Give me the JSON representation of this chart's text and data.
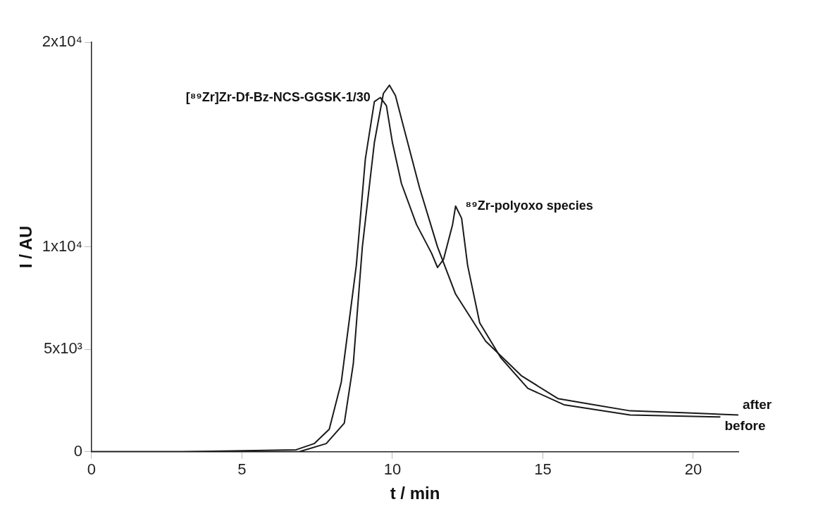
{
  "chart_data": {
    "type": "line",
    "xlabel": "t / min",
    "ylabel": "I / AU",
    "xlim": [
      0,
      21.5
    ],
    "xticks": [
      0,
      5,
      10,
      15,
      20
    ],
    "ylim": [
      0,
      20000
    ],
    "yticks": [
      0,
      {
        "value": 5000,
        "label": "5x10³"
      },
      {
        "value": 10000,
        "label": "1x10⁴"
      },
      {
        "value": 20000,
        "label": "2x10⁴"
      }
    ],
    "marker": "none",
    "line_style": "solid",
    "series": [
      {
        "name": "after",
        "color": "#1a1a1a",
        "x": [
          0,
          3,
          6.9,
          7.8,
          8.4,
          8.7,
          9.0,
          9.4,
          9.7,
          9.9,
          10.1,
          10.4,
          10.9,
          11.5,
          12.1,
          13.1,
          14.3,
          15.5,
          16.7,
          17.9,
          19.8,
          21.5
        ],
        "values": [
          0,
          0,
          0,
          400,
          1400,
          4300,
          10000,
          15100,
          17500,
          17900,
          17400,
          15700,
          12900,
          10000,
          7700,
          5400,
          3700,
          2600,
          2300,
          2000,
          1900,
          1800
        ]
      },
      {
        "name": "before",
        "color": "#1a1a1a",
        "x": [
          0,
          3,
          6.8,
          7.4,
          7.9,
          8.3,
          8.8,
          9.1,
          9.4,
          9.6,
          9.8,
          10.0,
          10.3,
          10.8,
          11.3,
          11.5,
          11.7,
          12.0,
          12.1,
          12.3,
          12.5,
          12.9,
          13.6,
          14.5,
          15.7,
          17.9,
          20.9
        ],
        "values": [
          0,
          0,
          100,
          400,
          1100,
          3400,
          9100,
          14300,
          17100,
          17300,
          16900,
          15100,
          13100,
          11100,
          9700,
          9000,
          9400,
          11100,
          12000,
          11400,
          9100,
          6300,
          4600,
          3100,
          2300,
          1800,
          1700
        ]
      }
    ],
    "annotations": [
      {
        "text": "[⁸⁹Zr]Zr-Df-Bz-NCS-GGSK-1/30",
        "x": 9.6,
        "y": 17300
      },
      {
        "text": "⁸⁹Zr-polyoxo species",
        "x": 12.1,
        "y": 12000
      }
    ]
  }
}
